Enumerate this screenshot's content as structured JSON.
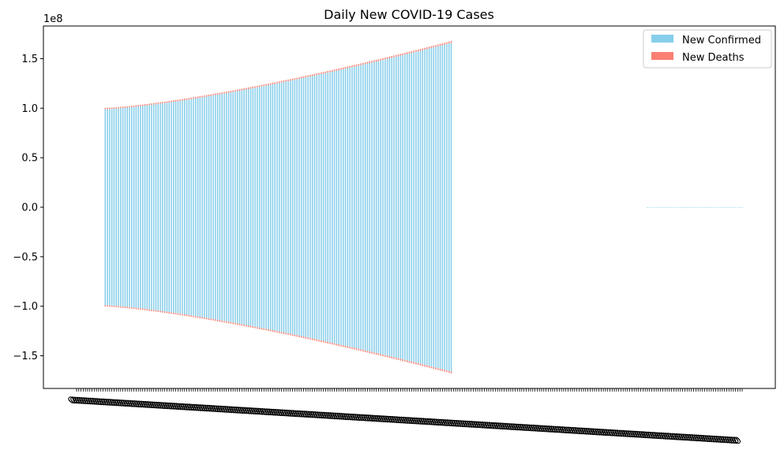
{
  "chart_data": {
    "type": "bar",
    "title": "Daily New COVID-19 Cases",
    "xlabel": "",
    "ylabel": "",
    "y_multiplier_label": "1e8",
    "ylim": [
      -1.83,
      1.83
    ],
    "y_ticks": [
      -1.5,
      -1.0,
      -0.5,
      0.0,
      0.5,
      1.0,
      1.5
    ],
    "y_tick_labels": [
      "−1.5",
      "−1.0",
      "−0.5",
      "0.0",
      "0.5",
      "1.0",
      "1.5"
    ],
    "legend": {
      "position": "top-right"
    },
    "colors": {
      "confirmed": "#87ceeb",
      "deaths": "#fa8072"
    },
    "n_categories": 303,
    "category_tick_label": "0",
    "segments": [
      {
        "from": 0,
        "to": 12,
        "confirmed_start": 0.0,
        "confirmed_end": 0.0,
        "deaths_start": 0.0,
        "deaths_end": 0.0
      },
      {
        "from": 13,
        "to": 170,
        "confirmed_start": 0.99,
        "confirmed_end": 1.66,
        "deaths_start": 0.0135,
        "deaths_end": 0.018
      },
      {
        "from": 171,
        "to": 258,
        "confirmed_start": 0.0,
        "confirmed_end": 0.0,
        "deaths_start": 0.0,
        "deaths_end": 0.0
      },
      {
        "from": 259,
        "to": 302,
        "confirmed_start": 0.0005,
        "confirmed_end": 0.0008,
        "deaths_start": 0.0,
        "deaths_end": 0.0
      }
    ],
    "series": [
      {
        "name": "New Confirmed",
        "color": "#87ceeb"
      },
      {
        "name": "New Deaths",
        "color": "#fa8072"
      }
    ]
  }
}
